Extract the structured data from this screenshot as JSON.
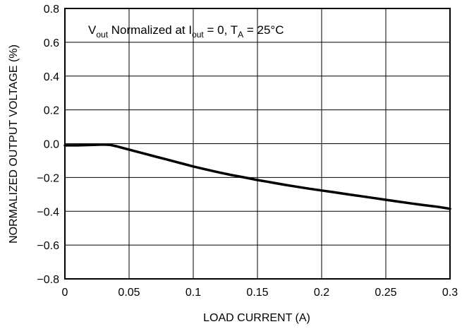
{
  "chart_data": {
    "type": "line",
    "xlabel": "LOAD CURRENT (A)",
    "ylabel": "NORMALIZED OUTPUT VOLTAGE (%)",
    "xlim": [
      0,
      0.3
    ],
    "ylim": [
      -0.8,
      0.8
    ],
    "x_ticks": [
      "0",
      "0.05",
      "0.1",
      "0.15",
      "0.2",
      "0.25",
      "0.3"
    ],
    "y_ticks": [
      "0.8",
      "0.6",
      "0.4",
      "0.2",
      "0.0",
      "−0.2",
      "−0.4",
      "−0.6",
      "−0.8"
    ],
    "x_tick_values": [
      0,
      0.05,
      0.1,
      0.15,
      0.2,
      0.25,
      0.3
    ],
    "y_tick_values": [
      0.8,
      0.6,
      0.4,
      0.2,
      0.0,
      -0.2,
      -0.4,
      -0.6,
      -0.8
    ],
    "grid": true,
    "annotation": {
      "v": "V",
      "v_sub": "out",
      "mid": " Normalized at I",
      "i_sub": "out",
      "mid2": " = 0, T",
      "t_sub": "A",
      "end": " = 25°C"
    },
    "series": [
      {
        "x": [
          0,
          0.01,
          0.02,
          0.03,
          0.035,
          0.04,
          0.05,
          0.06,
          0.07,
          0.08,
          0.09,
          0.1,
          0.11,
          0.12,
          0.13,
          0.14,
          0.15,
          0.16,
          0.17,
          0.18,
          0.19,
          0.2,
          0.21,
          0.22,
          0.23,
          0.24,
          0.25,
          0.26,
          0.27,
          0.28,
          0.29,
          0.3
        ],
        "y": [
          -0.01,
          -0.01,
          -0.008,
          -0.005,
          -0.007,
          -0.015,
          -0.035,
          -0.055,
          -0.075,
          -0.095,
          -0.115,
          -0.135,
          -0.153,
          -0.17,
          -0.186,
          -0.2,
          -0.215,
          -0.228,
          -0.242,
          -0.254,
          -0.266,
          -0.277,
          -0.288,
          -0.299,
          -0.31,
          -0.321,
          -0.332,
          -0.343,
          -0.354,
          -0.364,
          -0.373,
          -0.385
        ],
        "color": "#000000"
      }
    ]
  }
}
